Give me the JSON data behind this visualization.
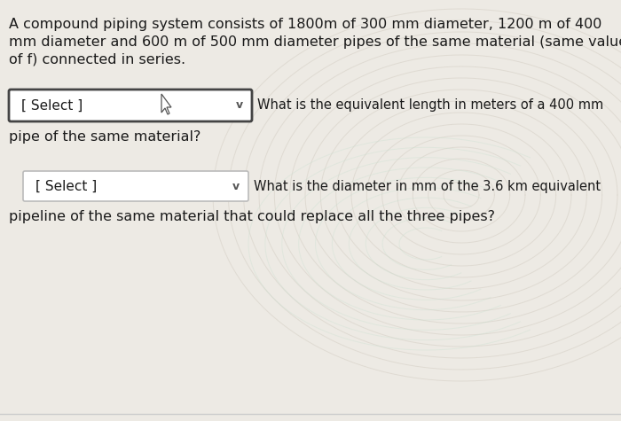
{
  "bg_color": "#edeae4",
  "text_color": "#1a1a1a",
  "paragraph_text_line1": "A compound piping system consists of 1800m of 300 mm diameter, 1200 m of 400",
  "paragraph_text_line2": "mm diameter and 600 m of 500 mm diameter pipes of the same material (same value",
  "paragraph_text_line3": "of f) connected in series.",
  "select_box1_label": "[ Select ]",
  "select_box1_question": "What is the equivalent length in meters of a 400 mm",
  "q1_continuation": "pipe of the same material?",
  "select_box2_label": "[ Select ]",
  "select_box2_question": "What is the diameter in mm of the 3.6 km equivalent",
  "q2_continuation": "pipeline of the same material that could replace all the three pipes?",
  "watermark_color": "#d4cec4",
  "watermark_color2": "#c8e0d0",
  "box1_border_color": "#444444",
  "box2_border_color": "#bbbbbb",
  "font_size_paragraph": 11.5,
  "font_size_select": 11,
  "font_size_question": 10.5,
  "bottom_line_color": "#cccccc"
}
